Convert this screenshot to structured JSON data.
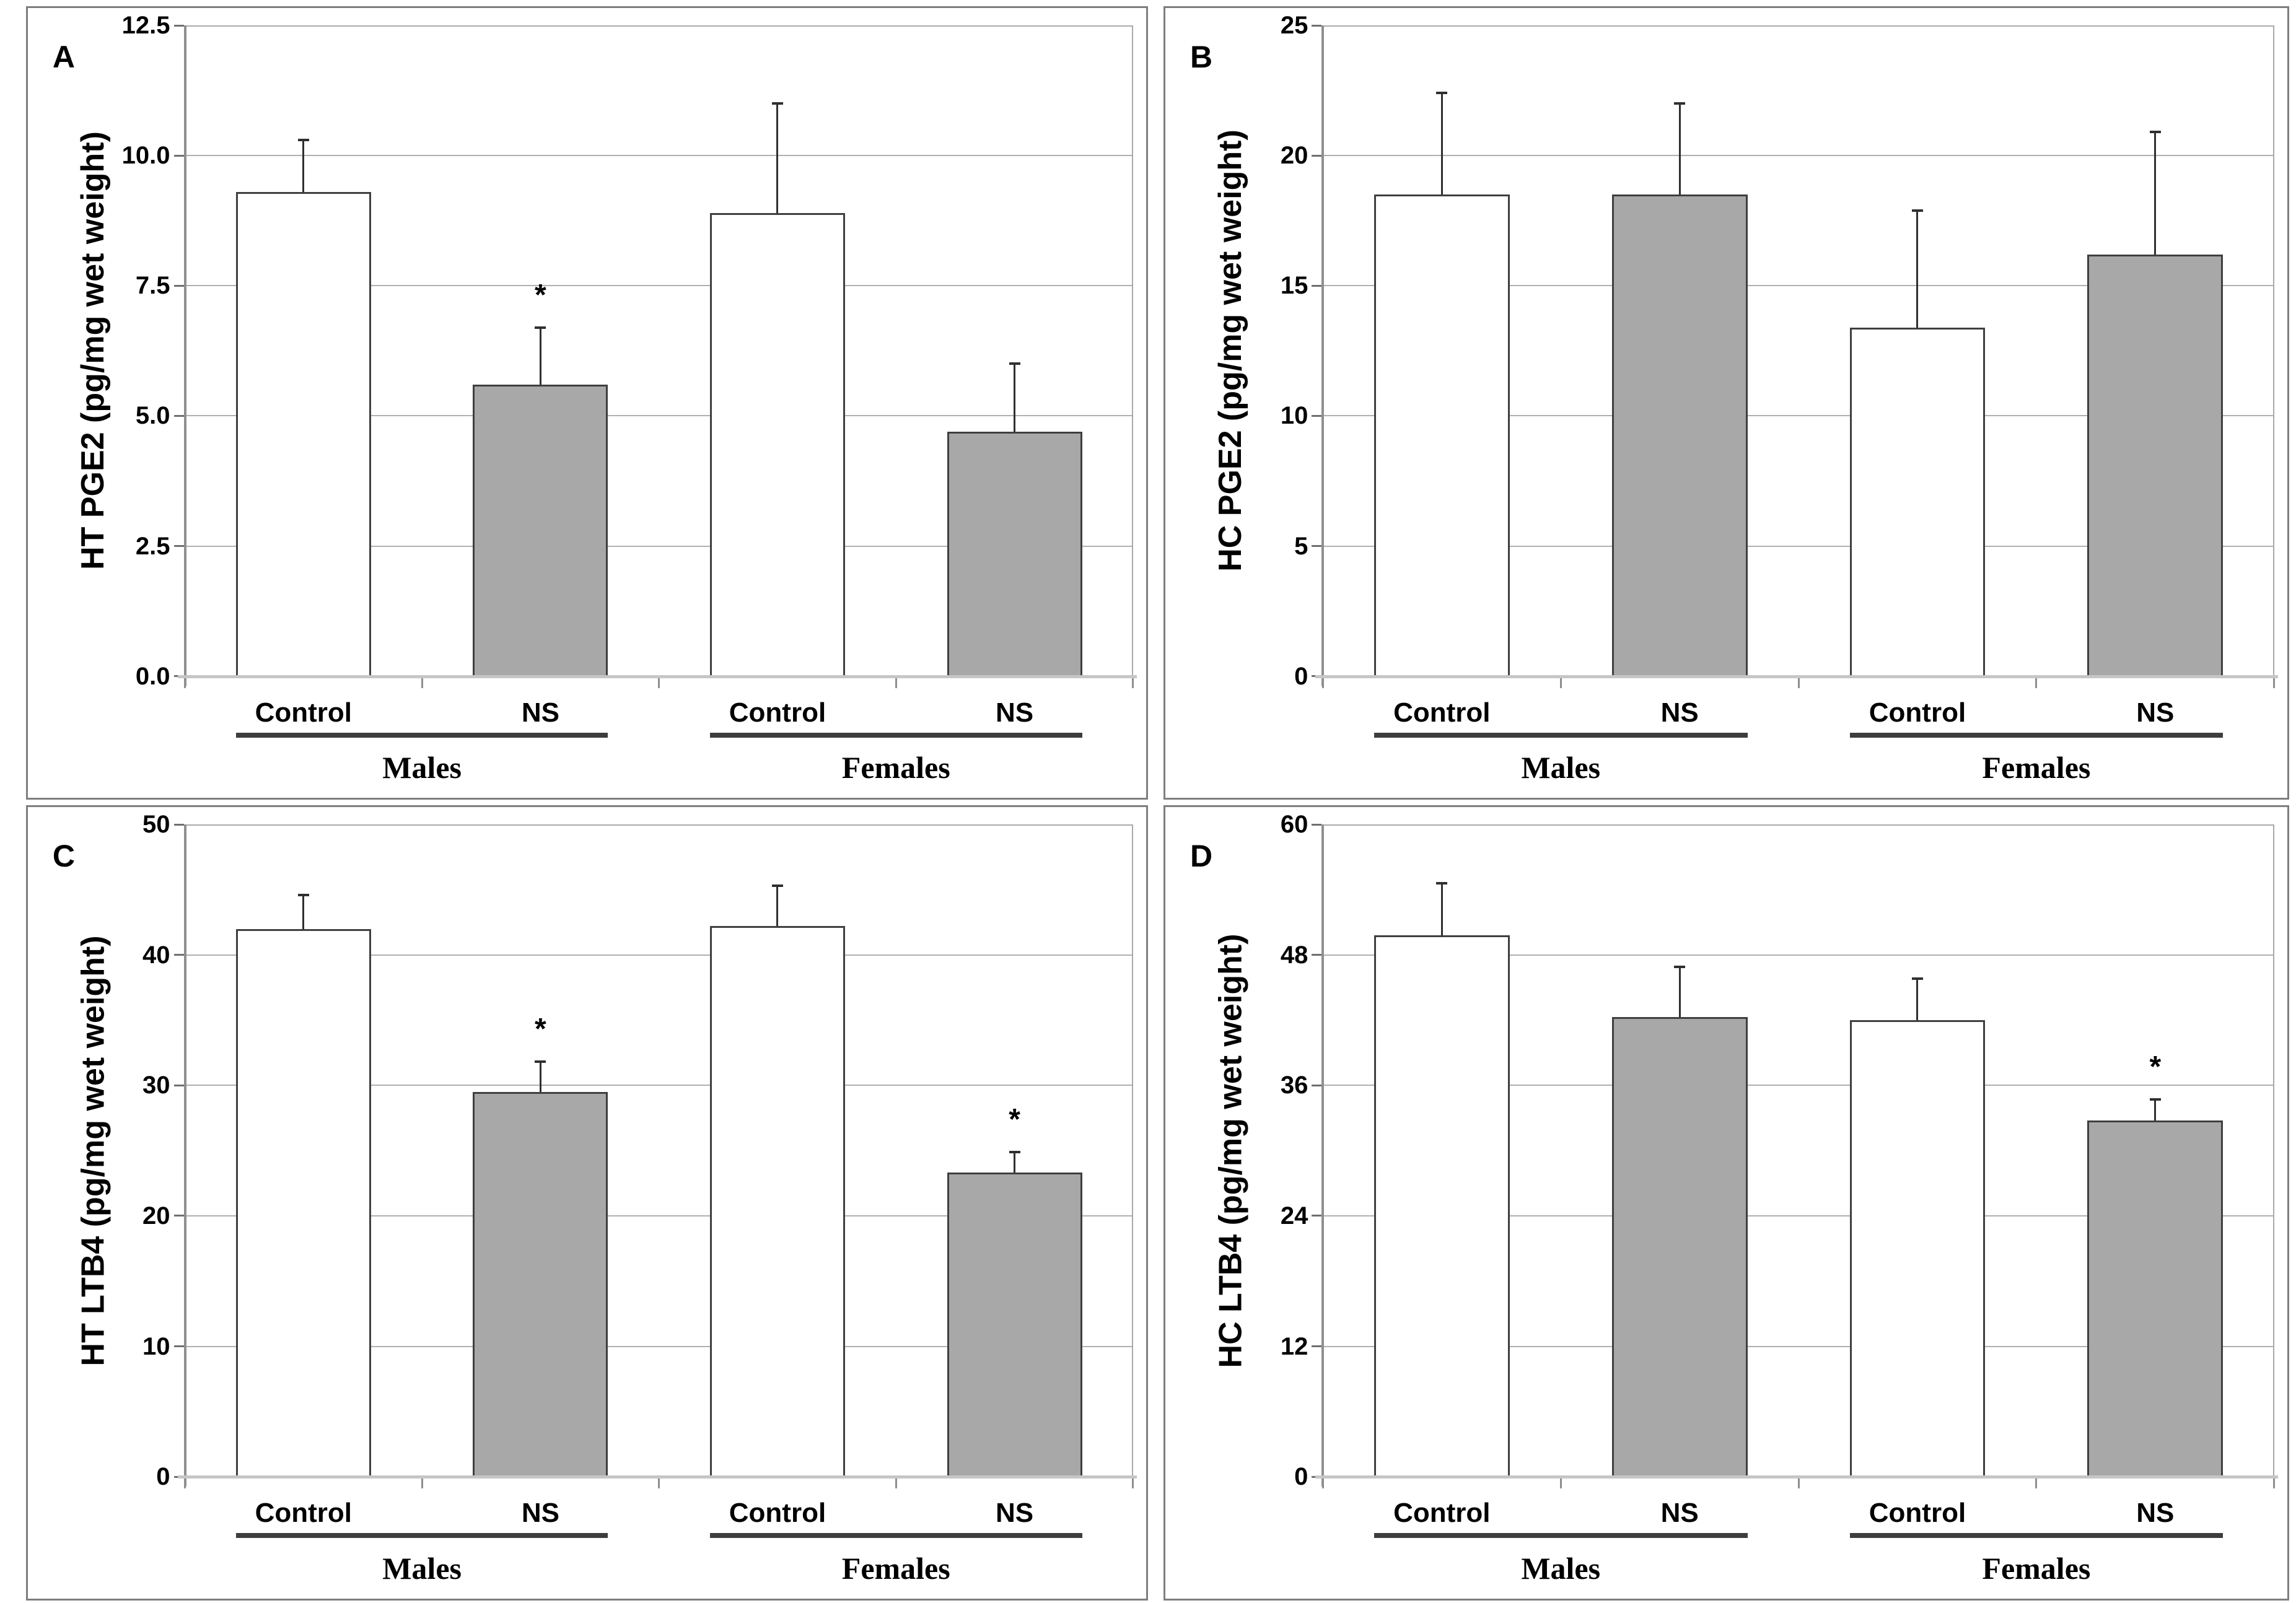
{
  "style": {
    "control_fill": "#ffffff",
    "ns_fill": "#a8a8a8",
    "bar_border": "#3f3f3f",
    "gridline": "#b0b0b0",
    "axis": "#8f8f8f",
    "baseline": "#c6c6c6",
    "panel_border": "#7e7e7e",
    "error_bar": "#2f2f2f",
    "sig_marker": "*"
  },
  "chart_data": [
    {
      "type": "bar",
      "panel": "A",
      "ylabel": "HT PGE2 (pg/mg wet weight)",
      "ylim": [
        0,
        12.5
      ],
      "ystep": 2.5,
      "ytick_labels": [
        "12.5",
        "10.0",
        "7.5",
        "5.0",
        "2.5",
        "0.0"
      ],
      "grid": true,
      "groups": [
        "Males",
        "Females"
      ],
      "categories": [
        "Control",
        "NS",
        "Control",
        "NS"
      ],
      "bars": [
        {
          "group": "Males",
          "label": "Control",
          "value": 9.3,
          "err_top": 10.3,
          "fill": "control",
          "sig": false
        },
        {
          "group": "Males",
          "label": "NS",
          "value": 5.6,
          "err_top": 6.7,
          "fill": "ns",
          "sig": true
        },
        {
          "group": "Females",
          "label": "Control",
          "value": 8.9,
          "err_top": 11.0,
          "fill": "control",
          "sig": false
        },
        {
          "group": "Females",
          "label": "NS",
          "value": 4.7,
          "err_top": 6.0,
          "fill": "ns",
          "sig": false
        }
      ]
    },
    {
      "type": "bar",
      "panel": "B",
      "ylabel": "HC PGE2 (pg/mg wet weight)",
      "ylim": [
        0,
        25
      ],
      "ystep": 5,
      "ytick_labels": [
        "25",
        "20",
        "15",
        "10",
        "5",
        "0"
      ],
      "grid": true,
      "groups": [
        "Males",
        "Females"
      ],
      "categories": [
        "Control",
        "NS",
        "Control",
        "NS"
      ],
      "bars": [
        {
          "group": "Males",
          "label": "Control",
          "value": 18.5,
          "err_top": 22.4,
          "fill": "control",
          "sig": false
        },
        {
          "group": "Males",
          "label": "NS",
          "value": 18.5,
          "err_top": 22.0,
          "fill": "ns",
          "sig": false
        },
        {
          "group": "Females",
          "label": "Control",
          "value": 13.4,
          "err_top": 17.9,
          "fill": "control",
          "sig": false
        },
        {
          "group": "Females",
          "label": "NS",
          "value": 16.2,
          "err_top": 20.9,
          "fill": "ns",
          "sig": false
        }
      ]
    },
    {
      "type": "bar",
      "panel": "C",
      "ylabel": "HT LTB4 (pg/mg wet weight)",
      "ylim": [
        0,
        50
      ],
      "ystep": 10,
      "ytick_labels": [
        "50",
        "40",
        "30",
        "20",
        "10",
        "0"
      ],
      "grid": true,
      "groups": [
        "Males",
        "Females"
      ],
      "categories": [
        "Control",
        "NS",
        "Control",
        "NS"
      ],
      "bars": [
        {
          "group": "Males",
          "label": "Control",
          "value": 42.0,
          "err_top": 44.6,
          "fill": "control",
          "sig": false
        },
        {
          "group": "Males",
          "label": "NS",
          "value": 29.5,
          "err_top": 31.8,
          "fill": "ns",
          "sig": true
        },
        {
          "group": "Females",
          "label": "Control",
          "value": 42.2,
          "err_top": 45.3,
          "fill": "control",
          "sig": false
        },
        {
          "group": "Females",
          "label": "NS",
          "value": 23.3,
          "err_top": 24.9,
          "fill": "ns",
          "sig": true
        }
      ]
    },
    {
      "type": "bar",
      "panel": "D",
      "ylabel": "HC LTB4 (pg/mg wet weight)",
      "ylim": [
        0,
        60
      ],
      "ystep": 12,
      "ytick_labels": [
        "60",
        "48",
        "36",
        "24",
        "12",
        "0"
      ],
      "grid": true,
      "groups": [
        "Males",
        "Females"
      ],
      "categories": [
        "Control",
        "NS",
        "Control",
        "NS"
      ],
      "bars": [
        {
          "group": "Males",
          "label": "Control",
          "value": 49.8,
          "err_top": 54.6,
          "fill": "control",
          "sig": false
        },
        {
          "group": "Males",
          "label": "NS",
          "value": 42.3,
          "err_top": 46.9,
          "fill": "ns",
          "sig": false
        },
        {
          "group": "Females",
          "label": "Control",
          "value": 42.0,
          "err_top": 45.8,
          "fill": "control",
          "sig": false
        },
        {
          "group": "Females",
          "label": "NS",
          "value": 32.8,
          "err_top": 34.7,
          "fill": "ns",
          "sig": true
        }
      ]
    }
  ]
}
